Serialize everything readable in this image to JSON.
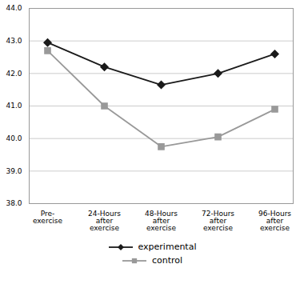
{
  "chart_data": {
    "type": "line",
    "categories": [
      "Pre-\nexercise",
      "24-Hours\nafter\nexercise",
      "48-Hours\nafter\nexercise",
      "72-Hours\nafter\nexercise",
      "96-Hours\nafter\nexercise"
    ],
    "series": [
      {
        "name": "experimental",
        "color": "#1a1a1a",
        "marker": "diamond",
        "values": [
          42.95,
          42.2,
          41.65,
          42.0,
          42.6
        ]
      },
      {
        "name": "control",
        "color": "#999999",
        "marker": "square",
        "values": [
          42.7,
          41.0,
          39.75,
          40.05,
          40.9
        ]
      }
    ],
    "ylim": [
      38,
      44
    ],
    "yticks": [
      38,
      39,
      40,
      41,
      42,
      43,
      44
    ],
    "grid": true,
    "legend": "bottom"
  }
}
